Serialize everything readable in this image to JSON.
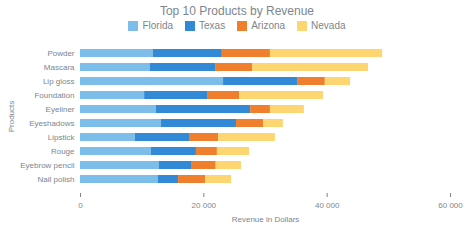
{
  "chart_data": {
    "type": "bar",
    "title": "Top 10 Products by Revenue",
    "orientation": "horizontal",
    "stacked": true,
    "grid": false,
    "legend": "top",
    "x_label": "Revenue in Dollars",
    "y_label": "Products",
    "categories": [
      "Powder",
      "Mascara",
      "Lip gloss",
      "Foundation",
      "Eyeliner",
      "Eyeshadows",
      "Lipstick",
      "Rouge",
      "Eyebrow pencil",
      "Nail polish"
    ],
    "series": [
      {
        "name": "Florida",
        "color": "#7cbdea",
        "values": [
          11800,
          11300,
          23200,
          10400,
          12300,
          13100,
          8900,
          11500,
          12800,
          12600
        ]
      },
      {
        "name": "Texas",
        "color": "#3289d6",
        "values": [
          11200,
          10600,
          12000,
          10200,
          15300,
          12200,
          8900,
          7300,
          5200,
          3300
        ]
      },
      {
        "name": "Arizona",
        "color": "#ef7f2c",
        "values": [
          7800,
          6000,
          4500,
          5200,
          3200,
          4400,
          4600,
          3400,
          4000,
          4400
        ]
      },
      {
        "name": "Nevada",
        "color": "#fdd672",
        "values": [
          18200,
          18800,
          4100,
          13600,
          5500,
          3200,
          9200,
          5200,
          4100,
          4200
        ]
      }
    ],
    "xlim": [
      0,
      60000
    ],
    "xticks": [
      0,
      {
        "value": 20000,
        "label": "20 000"
      },
      {
        "value": 40000,
        "label": "40 000"
      },
      {
        "value": 60000,
        "label": "60 000"
      }
    ]
  }
}
